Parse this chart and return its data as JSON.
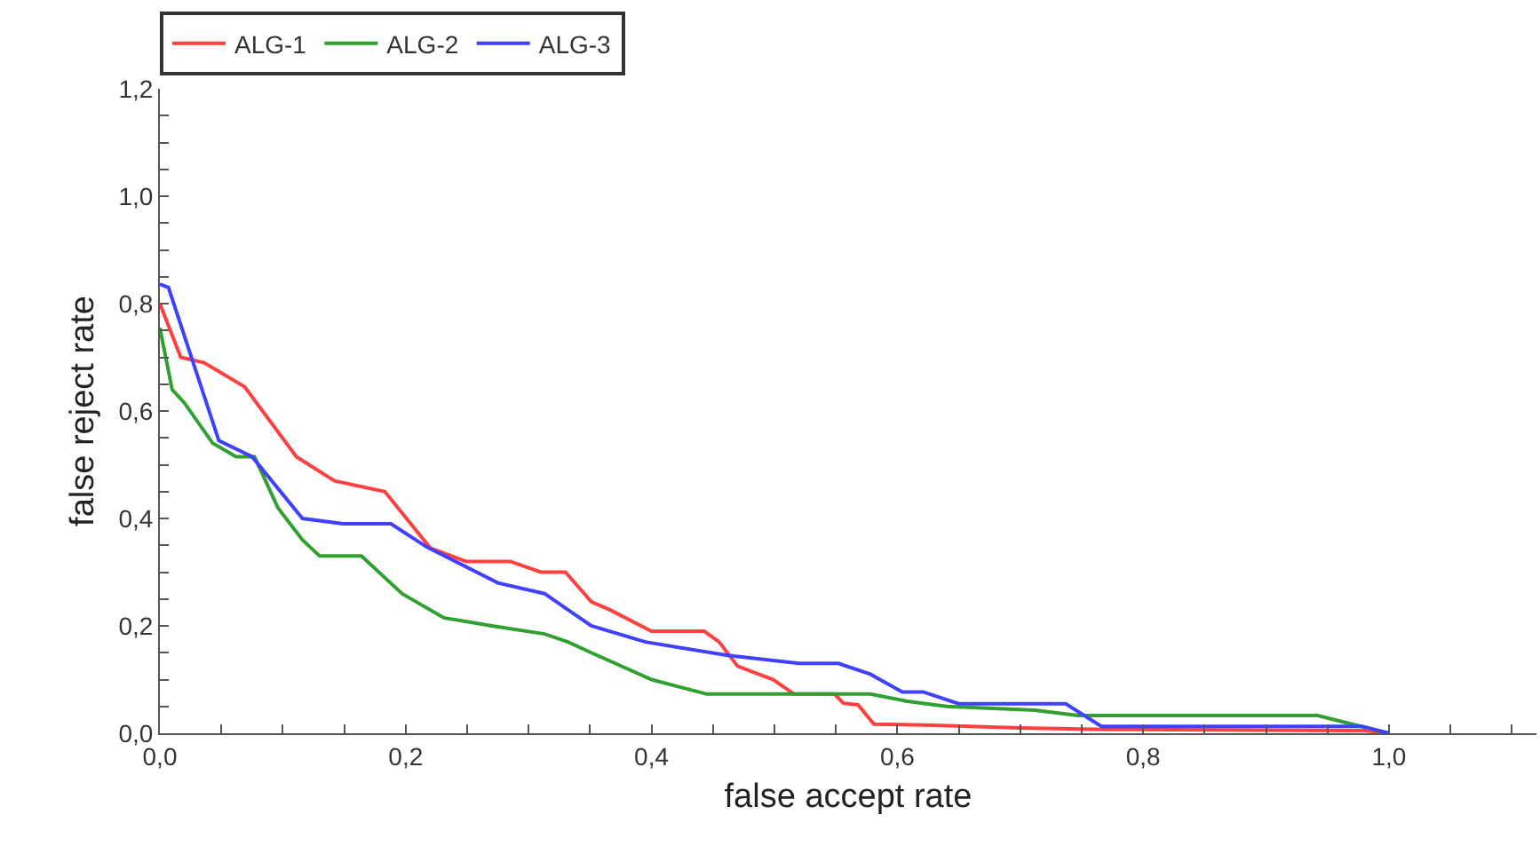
{
  "chart_data": {
    "type": "line",
    "xlabel": "false accept rate",
    "ylabel": "false reject rate",
    "xlim": [
      0,
      1.12
    ],
    "ylim": [
      0,
      1.2
    ],
    "xticks": [
      {
        "value": 0,
        "label": "0,0"
      },
      {
        "value": 0.05,
        "label": null
      },
      {
        "value": 0.1,
        "label": null
      },
      {
        "value": 0.15,
        "label": null
      },
      {
        "value": 0.2,
        "label": "0,2"
      },
      {
        "value": 0.25,
        "label": null
      },
      {
        "value": 0.3,
        "label": null
      },
      {
        "value": 0.35,
        "label": null
      },
      {
        "value": 0.4,
        "label": "0,4"
      },
      {
        "value": 0.45,
        "label": null
      },
      {
        "value": 0.5,
        "label": null
      },
      {
        "value": 0.55,
        "label": null
      },
      {
        "value": 0.6,
        "label": "0,6"
      },
      {
        "value": 0.65,
        "label": null
      },
      {
        "value": 0.7,
        "label": null
      },
      {
        "value": 0.75,
        "label": null
      },
      {
        "value": 0.8,
        "label": "0,8"
      },
      {
        "value": 0.85,
        "label": null
      },
      {
        "value": 0.9,
        "label": null
      },
      {
        "value": 0.95,
        "label": null
      },
      {
        "value": 1.0,
        "label": "1,0"
      },
      {
        "value": 1.05,
        "label": null
      },
      {
        "value": 1.1,
        "label": null
      }
    ],
    "yticks": [
      {
        "value": 0,
        "label": "0,0"
      },
      {
        "value": 0.05,
        "label": null
      },
      {
        "value": 0.1,
        "label": null
      },
      {
        "value": 0.15,
        "label": null
      },
      {
        "value": 0.2,
        "label": "0,2"
      },
      {
        "value": 0.25,
        "label": null
      },
      {
        "value": 0.3,
        "label": null
      },
      {
        "value": 0.35,
        "label": null
      },
      {
        "value": 0.4,
        "label": "0,4"
      },
      {
        "value": 0.45,
        "label": null
      },
      {
        "value": 0.5,
        "label": null
      },
      {
        "value": 0.55,
        "label": null
      },
      {
        "value": 0.6,
        "label": "0,6"
      },
      {
        "value": 0.65,
        "label": null
      },
      {
        "value": 0.7,
        "label": null
      },
      {
        "value": 0.75,
        "label": null
      },
      {
        "value": 0.8,
        "label": "0,8"
      },
      {
        "value": 0.85,
        "label": null
      },
      {
        "value": 0.9,
        "label": null
      },
      {
        "value": 0.95,
        "label": null
      },
      {
        "value": 1.0,
        "label": "1,0"
      },
      {
        "value": 1.05,
        "label": null
      },
      {
        "value": 1.1,
        "label": null
      },
      {
        "value": 1.15,
        "label": null
      },
      {
        "value": 1.2,
        "label": "1,2"
      }
    ],
    "legend": "top left",
    "marker": "none",
    "line_style": "solid",
    "series": [
      {
        "name": "ALG-1",
        "color": "#ff4040",
        "x": [
          0,
          0.017,
          0.036,
          0.069,
          0.111,
          0.142,
          0.183,
          0.22,
          0.249,
          0.285,
          0.31,
          0.33,
          0.351,
          0.366,
          0.4,
          0.443,
          0.455,
          0.47,
          0.487,
          0.499,
          0.516,
          0.549,
          0.556,
          0.568,
          0.581,
          0.63,
          0.7,
          0.77,
          0.98,
          1.0
        ],
        "values": [
          0.8,
          0.7,
          0.69,
          0.645,
          0.515,
          0.47,
          0.45,
          0.345,
          0.32,
          0.32,
          0.3,
          0.3,
          0.245,
          0.23,
          0.19,
          0.19,
          0.17,
          0.125,
          0.11,
          0.1,
          0.073,
          0.073,
          0.056,
          0.053,
          0.017,
          0.015,
          0.01,
          0.007,
          0.005,
          0
        ]
      },
      {
        "name": "ALG-2",
        "color": "#30a030",
        "x": [
          0,
          0.01,
          0.02,
          0.043,
          0.062,
          0.077,
          0.096,
          0.116,
          0.13,
          0.164,
          0.197,
          0.231,
          0.27,
          0.313,
          0.332,
          0.351,
          0.4,
          0.445,
          0.578,
          0.607,
          0.64,
          0.712,
          0.747,
          0.942,
          1.0
        ],
        "values": [
          0.755,
          0.64,
          0.615,
          0.54,
          0.515,
          0.515,
          0.42,
          0.36,
          0.33,
          0.33,
          0.26,
          0.215,
          0.2,
          0.185,
          0.17,
          0.15,
          0.1,
          0.073,
          0.073,
          0.06,
          0.05,
          0.043,
          0.033,
          0.033,
          0
        ]
      },
      {
        "name": "ALG-3",
        "color": "#4040ff",
        "x": [
          0,
          0.007,
          0.048,
          0.075,
          0.116,
          0.149,
          0.188,
          0.217,
          0.275,
          0.313,
          0.332,
          0.351,
          0.395,
          0.462,
          0.52,
          0.552,
          0.578,
          0.604,
          0.621,
          0.65,
          0.737,
          0.766,
          0.978,
          1.0
        ],
        "values": [
          0.836,
          0.83,
          0.545,
          0.515,
          0.4,
          0.39,
          0.39,
          0.347,
          0.28,
          0.26,
          0.23,
          0.2,
          0.17,
          0.145,
          0.13,
          0.13,
          0.11,
          0.077,
          0.077,
          0.055,
          0.055,
          0.013,
          0.013,
          0
        ]
      }
    ]
  }
}
